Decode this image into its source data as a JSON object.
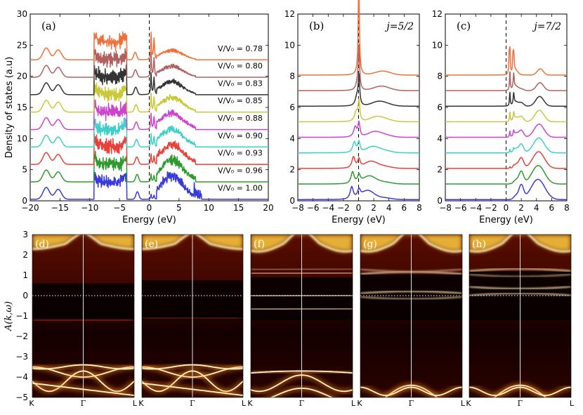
{
  "chart_data": [
    {
      "id": "a",
      "type": "line",
      "panel_label": "(a)",
      "xlabel": "Energy (eV)",
      "ylabel": "Density of states (a.u)",
      "xlim": [
        -20,
        20
      ],
      "ylim": [
        0,
        30
      ],
      "xticks": [
        "−20",
        "−15",
        "−10",
        "−5",
        "0",
        "5",
        "10",
        "15",
        "20"
      ],
      "yticks": [
        "0",
        "5",
        "10",
        "15",
        "20",
        "25",
        "30"
      ],
      "fermi_level": 0,
      "series": [
        {
          "name": "V/V₀ = 1.00",
          "offset": 0,
          "color": "#3a3adb"
        },
        {
          "name": "V/V₀ = 0.96",
          "offset": 2.8,
          "color": "#2e9a2e"
        },
        {
          "name": "V/V₀ = 0.93",
          "offset": 5.6,
          "color": "#e8403a"
        },
        {
          "name": "V/V₀ = 0.90",
          "offset": 8.4,
          "color": "#3fcfc8"
        },
        {
          "name": "V/V₀ = 0.88",
          "offset": 11.2,
          "color": "#cc44cc"
        },
        {
          "name": "V/V₀ = 0.85",
          "offset": 14.0,
          "color": "#c9c83a"
        },
        {
          "name": "V/V₀ = 0.83",
          "offset": 16.8,
          "color": "#333333"
        },
        {
          "name": "V/V₀ = 0.80",
          "offset": 19.6,
          "color": "#b0605e"
        },
        {
          "name": "V/V₀ = 0.78",
          "offset": 22.4,
          "color": "#f0703a"
        }
      ]
    },
    {
      "id": "b",
      "type": "line",
      "panel_label": "(b)",
      "annotation": "j=5/2",
      "xlabel": "Energy (eV)",
      "xlim": [
        -8,
        8
      ],
      "ylim": [
        0,
        12
      ],
      "xticks": [
        "−8",
        "−6",
        "−4",
        "−2",
        "0",
        "2",
        "4",
        "6",
        "8"
      ],
      "yticks": [
        "0",
        "2",
        "4",
        "6",
        "8",
        "10",
        "12"
      ],
      "fermi_level": 0,
      "offsets": [
        0,
        1,
        2,
        3,
        4,
        5,
        6,
        7,
        8
      ]
    },
    {
      "id": "c",
      "type": "line",
      "panel_label": "(c)",
      "annotation": "j=7/2",
      "xlabel": "Energy (eV)",
      "xlim": [
        -8,
        8
      ],
      "ylim": [
        0,
        12
      ],
      "xticks": [
        "−8",
        "−6",
        "−4",
        "−2",
        "0",
        "2",
        "4",
        "6",
        "8"
      ],
      "yticks": [
        "0",
        "2",
        "4",
        "6",
        "8",
        "10",
        "12"
      ],
      "fermi_level": 0,
      "offsets": [
        0,
        1,
        2,
        3,
        4,
        5,
        6,
        7,
        8
      ]
    },
    {
      "id": "spectral",
      "type": "heatmap",
      "ylabel": "A(k,ω)",
      "ylim": [
        -5,
        3
      ],
      "yticks": [
        "3",
        "2",
        "1",
        "0",
        "−1",
        "−2",
        "−3",
        "−4",
        "−5"
      ],
      "kpath": [
        "K",
        "Γ",
        "L"
      ],
      "panels": [
        "(d)",
        "(e)",
        "(f)",
        "(g)",
        "(h)"
      ]
    }
  ]
}
